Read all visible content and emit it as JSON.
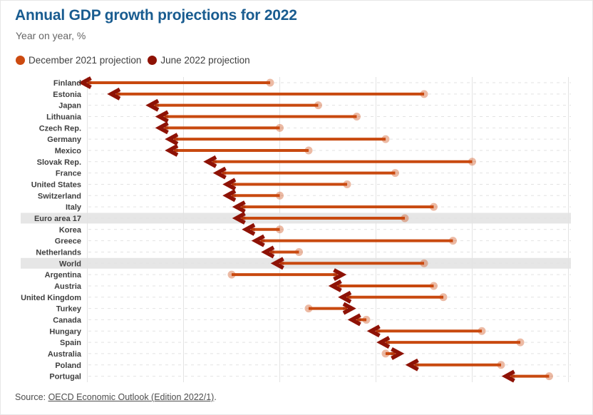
{
  "chart_data": {
    "type": "scatter",
    "subtype": "dumbbell_arrow",
    "title": "Annual GDP growth projections for 2022",
    "subtitle": "Year on year, %",
    "xlabel": "",
    "ylabel": "",
    "x_unit": "%",
    "xlim": [
      0.9,
      6.1
    ],
    "x_gridlines": [
      1,
      2,
      3,
      4,
      5,
      6
    ],
    "x_axis_tick_labels_visible": false,
    "grid": "vertical solid lines, dashed horizontal line per row",
    "legend_position": "top-left",
    "sort": "ascending by June 2022 projection",
    "categories": [
      "Finland",
      "Estonia",
      "Japan",
      "Lithuania",
      "Czech Rep.",
      "Germany",
      "Mexico",
      "Slovak Rep.",
      "France",
      "United States",
      "Switzerland",
      "Italy",
      "Euro area 17",
      "Korea",
      "Greece",
      "Netherlands",
      "World",
      "Argentina",
      "Austria",
      "United Kingdom",
      "Turkey",
      "Canada",
      "Hungary",
      "Spain",
      "Australia",
      "Poland",
      "Portugal"
    ],
    "highlighted_categories": [
      "Euro area 17",
      "World"
    ],
    "series": [
      {
        "name": "December 2021 projection",
        "color": "#cc4a10",
        "marker_color": "rgba(204,74,16,0.38)",
        "values": [
          2.9,
          4.5,
          3.4,
          3.8,
          3.0,
          4.1,
          3.3,
          5.0,
          4.2,
          3.7,
          3.0,
          4.6,
          4.3,
          3.0,
          4.8,
          3.2,
          4.5,
          2.5,
          4.6,
          4.7,
          3.3,
          3.9,
          5.1,
          5.5,
          4.1,
          5.3,
          5.8
        ]
      },
      {
        "name": "June 2022 projection",
        "color": "#8e1205",
        "marker_color": "rgba(142,18,5,0.28)",
        "values": [
          1.0,
          1.3,
          1.7,
          1.8,
          1.8,
          1.9,
          1.9,
          2.3,
          2.4,
          2.5,
          2.5,
          2.6,
          2.6,
          2.7,
          2.8,
          2.9,
          3.0,
          3.6,
          3.6,
          3.7,
          3.7,
          3.8,
          4.0,
          4.1,
          4.2,
          4.4,
          5.4
        ]
      }
    ],
    "arrow_from_series": "December 2021 projection",
    "arrow_to_series": "June 2022 projection"
  },
  "source": {
    "prefix": "Source: ",
    "link_text": "OECD Economic Outlook (Edition 2022/1)",
    "suffix": "."
  },
  "colors": {
    "title": "#195c90",
    "subtitle": "#666666",
    "text": "#3f3f3f",
    "december": "#cc4a10",
    "june": "#8e1205",
    "arrow_line": "#c8490f",
    "gridline": "#e3e3e3",
    "row_dash": "#e2e2e2",
    "highlight_band": "#e6e6e6",
    "source_text": "#4d4d4d",
    "background": "#ffffff"
  }
}
